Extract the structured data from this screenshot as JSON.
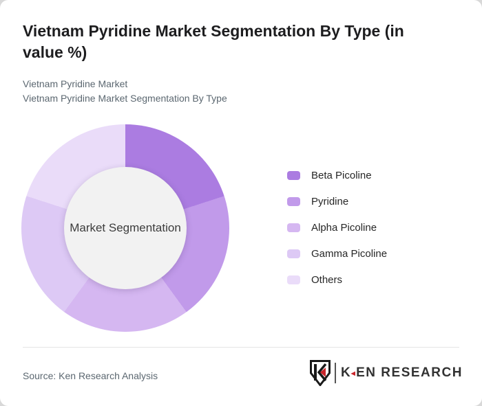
{
  "header": {
    "title": "Vietnam Pyridine Market Segmentation By Type (in value %)",
    "subtitle_line1": "Vietnam Pyridine Market",
    "subtitle_line2": "Vietnam Pyridine Market Segmentation By Type"
  },
  "chart_data": {
    "type": "pie",
    "donut": true,
    "title": "Vietnam Pyridine Market Segmentation By Type (in value %)",
    "center_label": "Market Segmentation",
    "categories": [
      "Beta Picoline",
      "Pyridine",
      "Alpha Picoline",
      "Gamma Picoline",
      "Others"
    ],
    "values": [
      20,
      20,
      20,
      20,
      20
    ],
    "colors": [
      "#ab7ce1",
      "#c19aea",
      "#d5b7f1",
      "#ddc9f5",
      "#eadcf9"
    ],
    "start_angle_deg": 0,
    "legend_position": "right",
    "inner_circle_color": "#f2f2f2"
  },
  "footer": {
    "source": "Source: Ken Research Analysis",
    "logo": {
      "letter_k": "K",
      "red_triangle": "◄",
      "wordmark_rest": "EN RESEARCH",
      "brand_red": "#c9252b"
    }
  }
}
